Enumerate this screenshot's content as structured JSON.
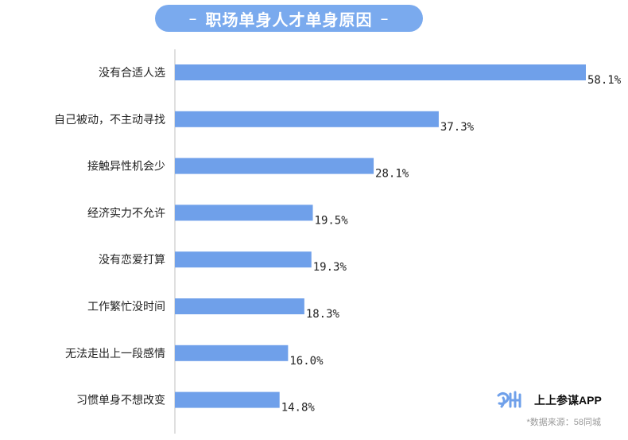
{
  "title": "职场单身人才单身原因",
  "title_dash": "–",
  "chart_data": {
    "type": "bar",
    "orientation": "horizontal",
    "categories": [
      "没有合适人选",
      "自己被动，不主动寻找",
      "接触异性机会少",
      "经济实力不允许",
      "没有恋爱打算",
      "工作繁忙没时间",
      "无法走出上一段感情",
      "习惯单身不想改变"
    ],
    "values": [
      58.1,
      37.3,
      28.1,
      19.5,
      19.3,
      18.3,
      16.0,
      14.8
    ],
    "labels": [
      "58.1%",
      "37.3%",
      "28.1%",
      "19.5%",
      "19.3%",
      "18.3%",
      "16.0%",
      "14.8%"
    ],
    "unit": "%",
    "xlim": [
      0,
      58.1
    ],
    "bar_color": "#6fa0ea",
    "grid": false,
    "legend": "none"
  },
  "brand": {
    "name": "上上参谋APP",
    "logo_icon": "brand-logo-icon",
    "logo_color": "#6fa0ea"
  },
  "source": "*数据来源：58同城"
}
